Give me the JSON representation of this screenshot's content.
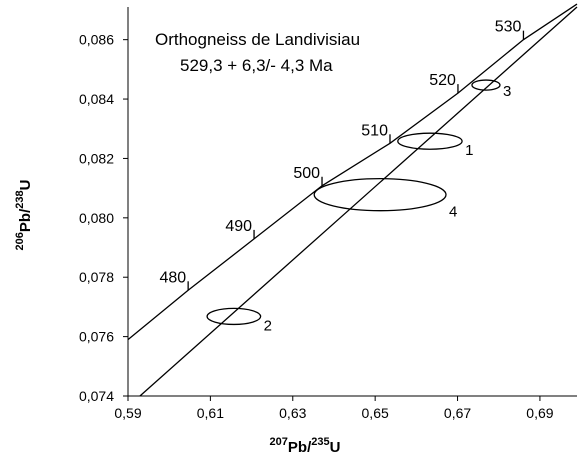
{
  "chart_data": {
    "type": "concordia",
    "title": "Orthogneiss de Landivisiau",
    "subtitle": "529,3 + 6,3/- 4,3 Ma",
    "x_label": [
      "207",
      "Pb/",
      "235",
      "U"
    ],
    "y_label": [
      "206",
      "Pb/",
      "238",
      "U"
    ],
    "xlim": [
      0.59,
      0.699
    ],
    "ylim": [
      0.074,
      0.0871
    ],
    "xticks": [
      {
        "value": 0.59,
        "label": "0,59"
      },
      {
        "value": 0.61,
        "label": "0,61"
      },
      {
        "value": 0.63,
        "label": "0,63"
      },
      {
        "value": 0.65,
        "label": "0,65"
      },
      {
        "value": 0.67,
        "label": "0,67"
      },
      {
        "value": 0.69,
        "label": "0,69"
      }
    ],
    "yticks": [
      {
        "value": 0.074,
        "label": "0,074"
      },
      {
        "value": 0.076,
        "label": "0,076"
      },
      {
        "value": 0.078,
        "label": "0,078"
      },
      {
        "value": 0.08,
        "label": "0,080"
      },
      {
        "value": 0.082,
        "label": "0,082"
      },
      {
        "value": 0.084,
        "label": "0,084"
      },
      {
        "value": 0.086,
        "label": "0,086"
      }
    ],
    "concordia": {
      "x": [
        0.59,
        0.6046,
        0.6206,
        0.6371,
        0.6536,
        0.6701,
        0.686,
        0.699
      ],
      "y": [
        0.0759,
        0.07756,
        0.07929,
        0.08108,
        0.08251,
        0.0842,
        0.086,
        0.0872
      ]
    },
    "ages": {
      "labels": [
        "480",
        "490",
        "500",
        "510",
        "520",
        "530"
      ],
      "x": [
        0.6046,
        0.6206,
        0.6371,
        0.6536,
        0.6701,
        0.686
      ],
      "y": [
        0.07756,
        0.07929,
        0.08108,
        0.08251,
        0.0842,
        0.086
      ]
    },
    "discordia": {
      "x": [
        0.5929,
        0.699
      ],
      "y": [
        0.074,
        0.0871
      ]
    },
    "ellipses": [
      {
        "label": "1",
        "x": 0.6633,
        "y": 0.08258,
        "rx": 0.0078,
        "ry": 0.00027
      },
      {
        "label": "2",
        "x": 0.6157,
        "y": 0.07668,
        "rx": 0.0065,
        "ry": 0.00027
      },
      {
        "label": "3",
        "x": 0.6769,
        "y": 0.08447,
        "rx": 0.0034,
        "ry": 0.00017
      },
      {
        "label": "4",
        "x": 0.6512,
        "y": 0.08078,
        "rx": 0.016,
        "ry": 0.00054
      }
    ],
    "color": "#000000"
  }
}
